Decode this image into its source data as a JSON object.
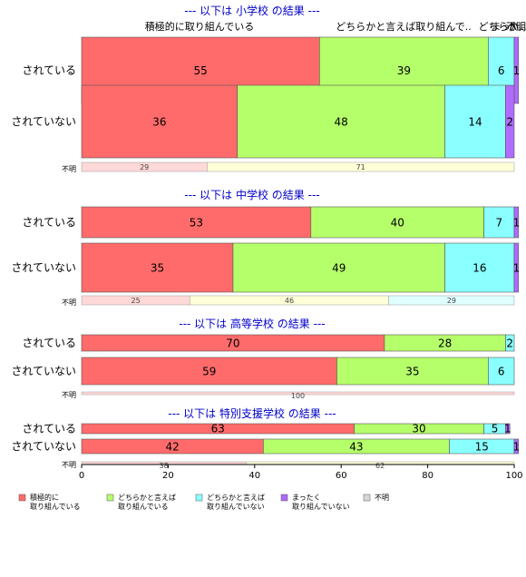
{
  "chart_data": {
    "type": "bar",
    "orientation": "horizontal-stacked-percent",
    "xlim": [
      0,
      100
    ],
    "x_ticks": [
      "0",
      "20",
      "40",
      "60",
      "80",
      "100"
    ],
    "top_category_labels": [
      "積極的に取り組んでいる",
      "どちらかと言えば取り組んで..",
      "どちらか..",
      "まった..",
      "不明"
    ],
    "unknown_row_label": "不明",
    "legend_position": "bottom",
    "legend": [
      {
        "line1": "積極的に",
        "line2": "取り組んでいる"
      },
      {
        "line1": "どちらかと言えば",
        "line2": "取り組んでいる"
      },
      {
        "line1": "どちらかと言えば",
        "line2": "取り組んでいない"
      },
      {
        "line1": "まったく",
        "line2": "取り組んでいない"
      },
      {
        "line1": "不明",
        "line2": ""
      }
    ],
    "colors": [
      "#ff6b6b",
      "#b5ff6b",
      "#8affff",
      "#b06bff",
      "#d8d8d8"
    ],
    "unknown_colors": [
      "#ffd8d8",
      "#ffffd8",
      "#e0ffff",
      "#eedcff",
      "#f0f0f0"
    ],
    "sections": [
      {
        "title": "--- 以下は 小学校 の結果 ---",
        "rows": [
          {
            "label": "されている",
            "values": [
              55,
              39,
              6,
              1,
              0
            ]
          },
          {
            "label": "されていない",
            "values": [
              36,
              48,
              14,
              2,
              0
            ]
          }
        ],
        "unknown": [
          29,
          71
        ]
      },
      {
        "title": "--- 以下は 中学校 の結果 ---",
        "rows": [
          {
            "label": "されている",
            "values": [
              53,
              40,
              7,
              1,
              0
            ]
          },
          {
            "label": "されていない",
            "values": [
              35,
              49,
              16,
              1,
              0
            ]
          }
        ],
        "unknown": [
          25,
          46,
          29
        ]
      },
      {
        "title": "--- 以下は 高等学校 の結果 ---",
        "rows": [
          {
            "label": "されている",
            "values": [
              70,
              28,
              2,
              0,
              0
            ]
          },
          {
            "label": "されていない",
            "values": [
              59,
              35,
              6,
              0,
              0
            ]
          }
        ],
        "unknown": [
          100
        ]
      },
      {
        "title": "--- 以下は 特別支援学校 の結果 ---",
        "rows": [
          {
            "label": "されている",
            "values": [
              63,
              30,
              5,
              1,
              0
            ]
          },
          {
            "label": "されていない",
            "values": [
              42,
              43,
              15,
              1,
              0
            ]
          }
        ],
        "unknown": [
          38,
          62
        ]
      }
    ]
  }
}
